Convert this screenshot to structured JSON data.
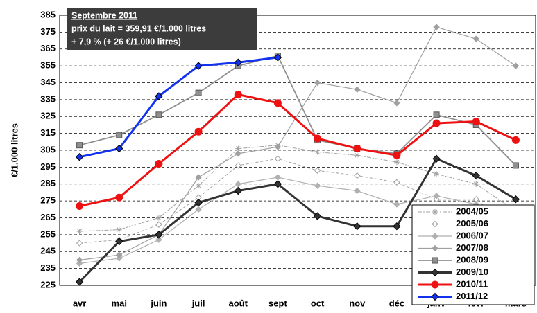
{
  "chart_data": {
    "type": "line",
    "annotation": [
      "Septembre  2011",
      "prix du lait = 359,91 €/1.000 litres",
      "+ 7,9 % (+ 26 €/1.000 litres)"
    ],
    "y_label": "€/1.000 litres",
    "categories": [
      "avr",
      "mai",
      "juin",
      "juil",
      "août",
      "sept",
      "oct",
      "nov",
      "déc",
      "janv",
      "févr",
      "mars"
    ],
    "ylim": [
      225,
      385
    ],
    "yticks": [
      225,
      235,
      245,
      255,
      265,
      275,
      285,
      295,
      305,
      315,
      325,
      335,
      345,
      355,
      365,
      375,
      385
    ],
    "grid": true,
    "legend": "lower right",
    "series": [
      {
        "name": "2004/05",
        "color": "#a0a0a0",
        "marker": "star",
        "dash": "6 2 2 2",
        "width": 1,
        "values": [
          257,
          258,
          265,
          284,
          306,
          308,
          304,
          302,
          298,
          291,
          285,
          269
        ]
      },
      {
        "name": "2005/06",
        "color": "#a0a0a0",
        "marker": "open-diamond",
        "dash": "4 3",
        "width": 1,
        "values": [
          250,
          252,
          261,
          277,
          296,
          300,
          293,
          290,
          286,
          276,
          276,
          256
        ]
      },
      {
        "name": "2006/07",
        "color": "#b0b0b0",
        "marker": "diamond",
        "dash": "",
        "width": 1.2,
        "values": [
          238,
          241,
          252,
          270,
          285,
          289,
          284,
          281,
          273,
          278,
          273,
          259
        ]
      },
      {
        "name": "2007/08",
        "color": "#a0a0a0",
        "marker": "diamond",
        "dash": "",
        "width": 1.2,
        "values": [
          240,
          243,
          255,
          289,
          303,
          307,
          345,
          341,
          333,
          378,
          371,
          355
        ]
      },
      {
        "name": "2008/09",
        "color": "#909090",
        "marker": "square",
        "dash": "",
        "width": 1.8,
        "values": [
          308,
          314,
          326,
          339,
          355,
          361,
          311,
          306,
          303,
          326,
          320,
          296
        ]
      },
      {
        "name": "2009/10",
        "color": "#333333",
        "marker": "diamond",
        "dash": "",
        "width": 3,
        "values": [
          227,
          251,
          255,
          274,
          281,
          285,
          266,
          260,
          260,
          300,
          290,
          276
        ]
      },
      {
        "name": "2010/11",
        "color": "#ee1111",
        "marker": "circle",
        "dash": "",
        "width": 3,
        "values": [
          272,
          277,
          297,
          316,
          338,
          333,
          312,
          306,
          302,
          321,
          322,
          311
        ]
      },
      {
        "name": "2011/12",
        "color": "#1133ee",
        "marker": "diamond",
        "dash": "",
        "width": 3,
        "values": [
          301,
          306,
          337,
          355,
          357,
          360,
          null,
          null,
          null,
          null,
          null,
          null
        ]
      }
    ]
  }
}
